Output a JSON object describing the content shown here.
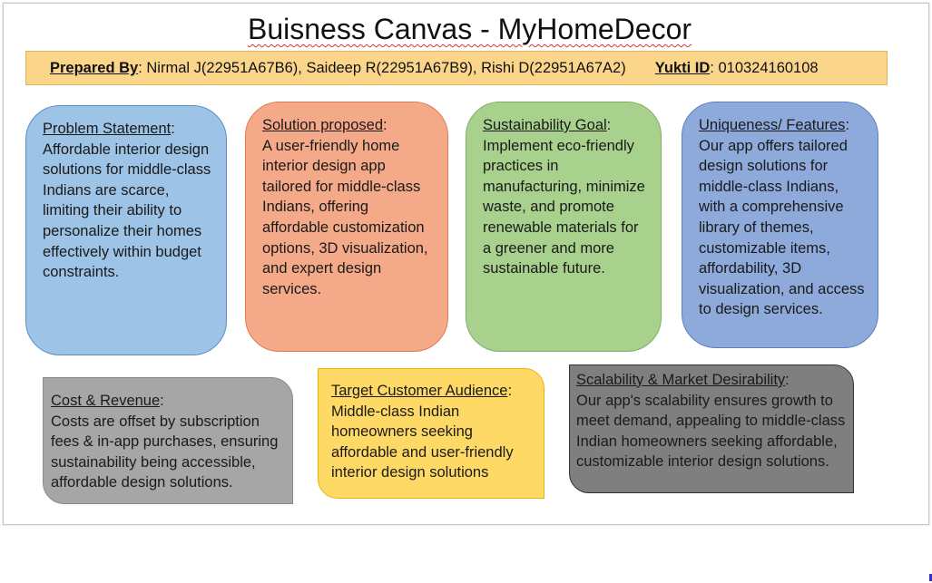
{
  "title": "Buisness Canvas - MyHomeDecor",
  "prepared_bar": {
    "label": "Prepared By",
    "names": ": Nirmal J(22951A67B6), Saideep R(22951A67B9), Rishi D(22951A67A2)",
    "yukti_label": "Yukti ID",
    "yukti_value": ": 010324160108"
  },
  "boxes": {
    "problem": {
      "heading": "Problem Statement",
      "body": "Affordable interior design solutions for middle-class Indians are scarce, limiting their ability to personalize their homes effectively within budget constraints."
    },
    "solution": {
      "heading": "Solution proposed",
      "body": "A user-friendly home interior design app tailored for middle-class Indians, offering affordable customization options, 3D visualization, and expert design services."
    },
    "sustainability": {
      "heading": "Sustainability Goal",
      "body": "Implement eco-friendly practices in manufacturing, minimize waste, and promote renewable materials for a greener and more sustainable future."
    },
    "uniqueness": {
      "heading": "Uniqueness/ Features",
      "body": "Our app offers tailored design solutions for middle-class Indians, with a comprehensive library of themes, customizable items, affordability, 3D visualization, and access to design services."
    },
    "cost": {
      "heading": "Cost & Revenue",
      "body": "Costs are offset by subscription fees & in-app purchases, ensuring sustainability being accessible, affordable design solutions."
    },
    "target": {
      "heading": "Target Customer Audience",
      "body": "Middle-class Indian homeowners seeking affordable and user-friendly interior design solutions"
    },
    "scalability": {
      "heading": "Scalability & Market Desirability",
      "body": "Our app's scalability ensures growth to meet demand, appealing to middle-class Indian homeowners seeking affordable, customizable interior design solutions."
    }
  },
  "colors": {
    "problem": "#9dc3e6",
    "solution": "#f4a988",
    "sustainability": "#a8d18d",
    "uniqueness": "#8eaadb",
    "cost": "#a6a6a6",
    "target": "#ffd966",
    "scalability": "#7f7f7f",
    "prepared_bar": "#fbd68a"
  }
}
